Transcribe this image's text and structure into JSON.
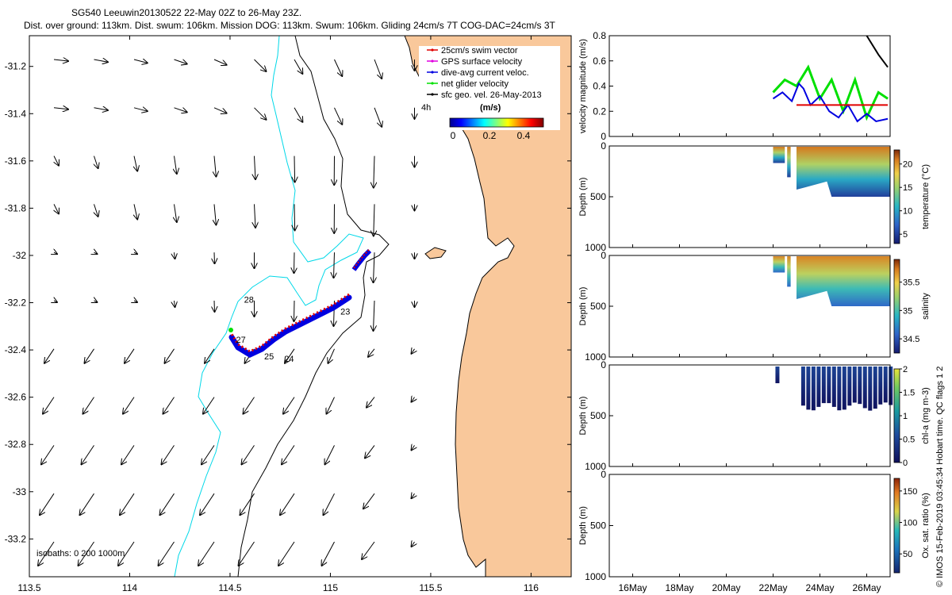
{
  "title": {
    "line1": "SG540 Leeuwin20130522 22-May 02Z to 26-May 23Z.",
    "line2": "Dist. over ground: 113km. Dist. swum: 106km. Mission DOG: 113km. Swum: 106km. Gliding 24cm/s 7T COG-DAC=24cm/s 3T"
  },
  "copyright": "© IMOS 15-Feb-2019 03:45:34 Hobart time. QC flags 1 2",
  "colors": {
    "land": "#F9C89B",
    "contour": "#000000",
    "isobath_cyan": "#00D8E8",
    "swim": "#E00000",
    "dac": "#0000E0",
    "gps": "#E000E0",
    "net": "#00E000"
  },
  "map": {
    "x_ticks": [
      "113.5",
      "114",
      "114.5",
      "115",
      "115.5",
      "116"
    ],
    "y_ticks": [
      "-31.2",
      "-31.4",
      "-31.6",
      "-31.8",
      "-32",
      "-32.2",
      "-32.4",
      "-32.6",
      "-32.8",
      "-33",
      "-33.2"
    ],
    "isobaths_label": "isobaths: 0   200   1000m",
    "legend": [
      {
        "label": "25cm/s swim vector",
        "color": "#E00000"
      },
      {
        "label": "GPS surface velocity",
        "color": "#E000E0"
      },
      {
        "label": "dive-avg current veloc.",
        "color": "#0000E0"
      },
      {
        "label": "net glider velocity",
        "color": "#00E000"
      },
      {
        "label": "sfc geo. vel. 26-May-2013",
        "color": "#000000"
      }
    ],
    "legend_4h": "4h",
    "colorbar_title": "(m/s)",
    "colorbar_ticks": [
      "0",
      "0.2",
      "0.4"
    ],
    "day_labels": [
      {
        "text": "23",
        "lon": 115.05,
        "lat": -32.25
      },
      {
        "text": "24",
        "lon": 114.77,
        "lat": -32.45
      },
      {
        "text": "25",
        "lon": 114.67,
        "lat": -32.44
      },
      {
        "text": "27",
        "lon": 114.53,
        "lat": -32.37
      },
      {
        "text": "28",
        "lon": 114.57,
        "lat": -32.2
      }
    ]
  },
  "chart_data": [
    {
      "type": "line",
      "ylabel": "velocity magnitude (m/s)",
      "ylim": [
        0,
        0.8
      ],
      "y_ticks": [
        "0",
        "0.2",
        "0.4",
        "0.6",
        "0.8"
      ],
      "series": [
        {
          "color": "#00E000",
          "x": [
            22.0,
            22.5,
            23.0,
            23.5,
            24.0,
            24.5,
            25.0,
            25.5,
            26.0,
            26.5,
            26.9
          ],
          "values": [
            0.35,
            0.45,
            0.4,
            0.55,
            0.3,
            0.45,
            0.2,
            0.45,
            0.15,
            0.35,
            0.3
          ]
        },
        {
          "color": "#0000E0",
          "x": [
            22.0,
            22.4,
            22.8,
            23.1,
            23.3,
            23.6,
            24.0,
            24.4,
            24.8,
            25.2,
            25.6,
            26.0,
            26.4,
            26.9
          ],
          "values": [
            0.3,
            0.35,
            0.28,
            0.42,
            0.38,
            0.25,
            0.32,
            0.2,
            0.15,
            0.25,
            0.12,
            0.18,
            0.12,
            0.14
          ]
        },
        {
          "color": "#E00000",
          "x": [
            23.0,
            26.9
          ],
          "values": [
            0.25,
            0.25
          ]
        },
        {
          "color": "#000000",
          "x": [
            26.0,
            26.5,
            26.9
          ],
          "values": [
            0.8,
            0.65,
            0.55
          ]
        }
      ]
    },
    {
      "type": "heatmap",
      "ylabel": "Depth (m)",
      "ylim": [
        1000,
        0
      ],
      "y_ticks": [
        "0",
        "500",
        "1000"
      ],
      "colorbar_label": "temperature (°C)",
      "colorbar_ticks": [
        "5",
        "10",
        "15",
        "20"
      ],
      "range": [
        3,
        23
      ],
      "max_depth": 500,
      "surface_value": 21,
      "deep_value": 5
    },
    {
      "type": "heatmap",
      "ylabel": "Depth (m)",
      "ylim": [
        1000,
        0
      ],
      "y_ticks": [
        "0",
        "500",
        "1000"
      ],
      "colorbar_label": "salinity",
      "colorbar_ticks": [
        "34.5",
        "35",
        "35.5"
      ],
      "range": [
        34.25,
        35.9
      ],
      "max_depth": 500,
      "surface_value": 35.7,
      "deep_value": 34.6
    },
    {
      "type": "heatmap",
      "ylabel": "Depth (m)",
      "ylim": [
        1000,
        0
      ],
      "y_ticks": [
        "0",
        "500",
        "1000"
      ],
      "colorbar_label": "chl-a (mg m-3)",
      "colorbar_ticks": [
        "0",
        "0.5",
        "1",
        "1.5",
        "2"
      ],
      "range": [
        0,
        2
      ],
      "max_depth": 450,
      "surface_value": 0.5,
      "deep_value": 0.05
    },
    {
      "type": "heatmap",
      "ylabel": "Depth (m)",
      "ylim": [
        1000,
        0
      ],
      "y_ticks": [
        "0",
        "500",
        "1000"
      ],
      "colorbar_label": "Ox. sat. ratio (%)",
      "colorbar_ticks": [
        "50",
        "100",
        "150"
      ],
      "range": [
        20,
        170
      ]
    }
  ],
  "time_axis": {
    "ticks": [
      "16May",
      "18May",
      "20May",
      "22May",
      "24May",
      "26May"
    ],
    "values": [
      16,
      18,
      20,
      22,
      24,
      26
    ],
    "range": [
      15,
      27
    ]
  }
}
